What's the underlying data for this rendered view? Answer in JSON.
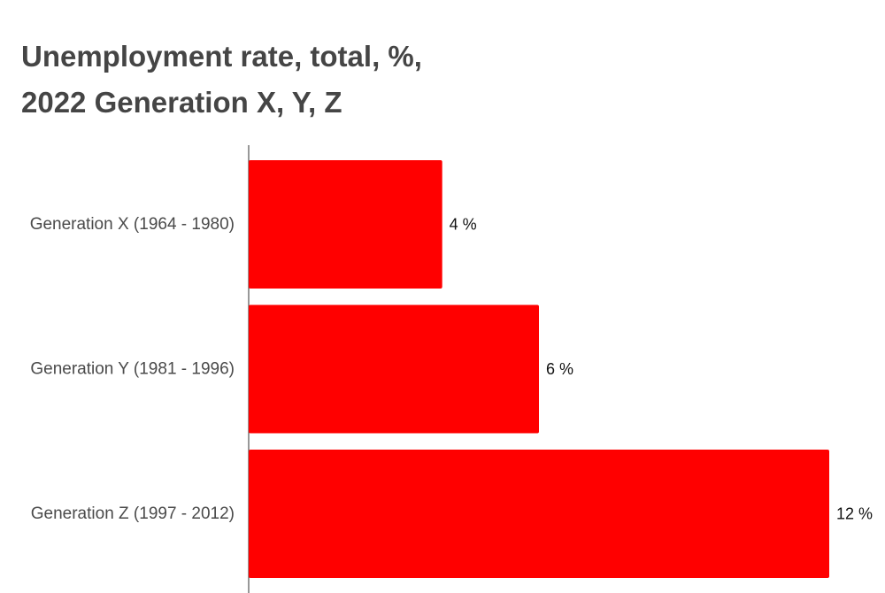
{
  "chart_data": {
    "type": "bar",
    "orientation": "horizontal",
    "title": [
      "Unemployment rate, total, %,",
      "2022 Generation X, Y, Z"
    ],
    "categories": [
      "Generation X (1964 - 1980)",
      "Generation Y (1981 - 1996)",
      "Generation Z (1997 - 2012)"
    ],
    "values": [
      4,
      6,
      12
    ],
    "value_labels": [
      "4 %",
      "6 %",
      "12 %"
    ],
    "bar_color": "#ff0000",
    "xlim": [
      0,
      12
    ],
    "grid": false,
    "legend": "none"
  }
}
